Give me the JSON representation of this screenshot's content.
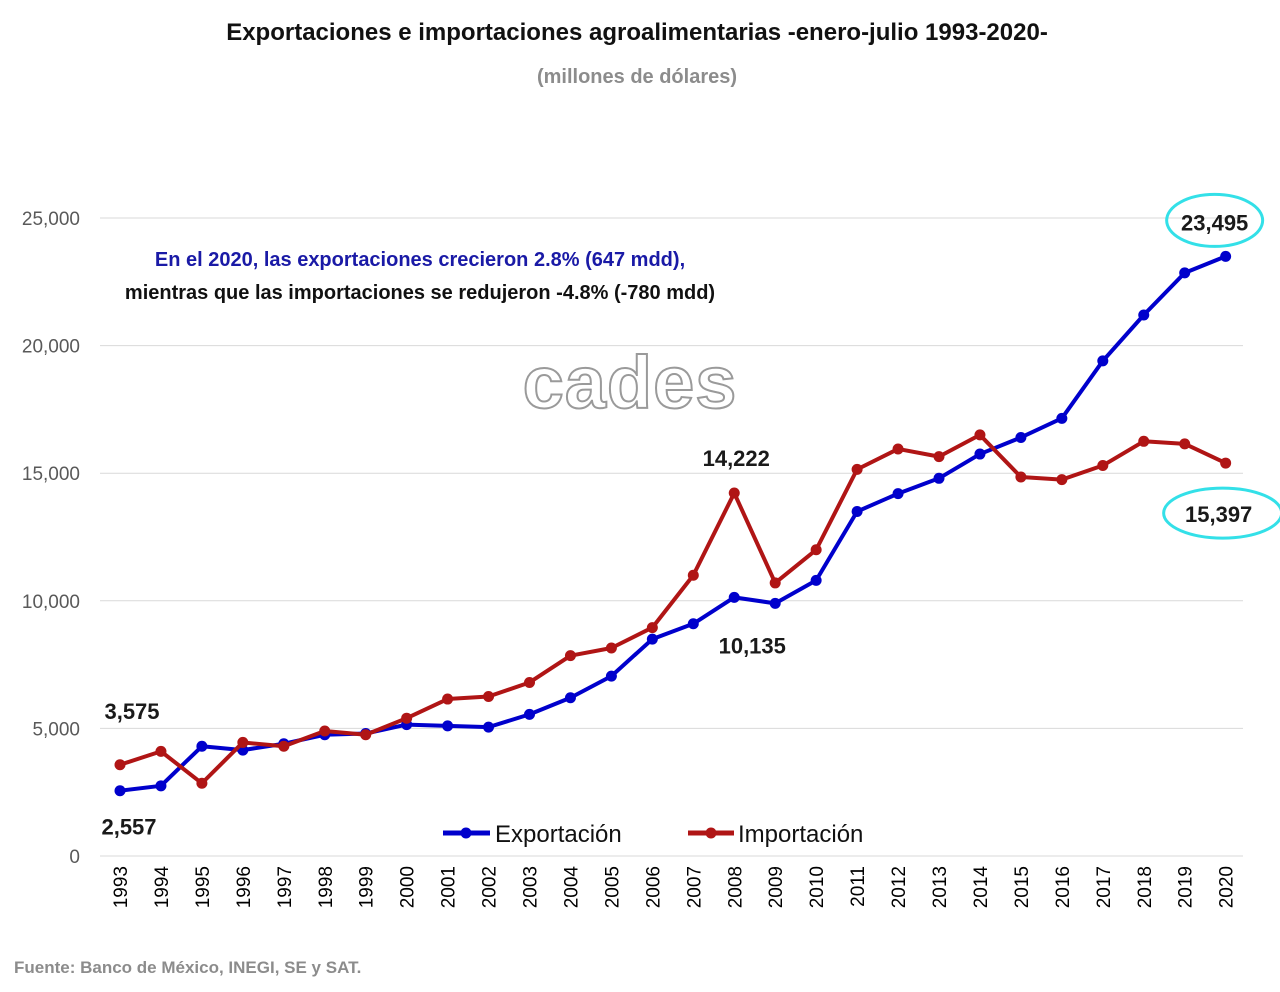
{
  "chart_data": {
    "type": "line",
    "title": "Exportaciones e importaciones agroalimentarias -enero-julio 1993-2020-",
    "subtitle": "(millones de dólares)",
    "categories": [
      "1993",
      "1994",
      "1995",
      "1996",
      "1997",
      "1998",
      "1999",
      "2000",
      "2001",
      "2002",
      "2003",
      "2004",
      "2005",
      "2006",
      "2007",
      "2008",
      "2009",
      "2010",
      "2011",
      "2012",
      "2013",
      "2014",
      "2015",
      "2016",
      "2017",
      "2018",
      "2019",
      "2020"
    ],
    "series": [
      {
        "name": "Exportación",
        "color": "#0000cc",
        "values": [
          2557,
          2750,
          4300,
          4150,
          4400,
          4750,
          4800,
          5150,
          5100,
          5050,
          5550,
          6200,
          7050,
          8500,
          9100,
          10135,
          9900,
          10800,
          13500,
          14200,
          14800,
          15750,
          16400,
          17150,
          19400,
          21200,
          22850,
          23495
        ]
      },
      {
        "name": "Importación",
        "color": "#b01515",
        "values": [
          3575,
          4100,
          2850,
          4450,
          4300,
          4900,
          4750,
          5400,
          6150,
          6250,
          6800,
          7850,
          8150,
          8950,
          11000,
          14222,
          10700,
          12000,
          15150,
          15950,
          15650,
          16500,
          14850,
          14750,
          15300,
          16250,
          16150,
          15397
        ]
      }
    ],
    "ylim": [
      0,
      25000
    ],
    "yticks": [
      0,
      5000,
      10000,
      15000,
      20000,
      25000
    ],
    "ytick_labels": [
      "0",
      "5,000",
      "10,000",
      "15,000",
      "20,000",
      "25,000"
    ],
    "grid": true,
    "legend_position": "bottom",
    "data_labels": [
      {
        "text": "3,575",
        "series": "Importación",
        "category": "1993"
      },
      {
        "text": "2,557",
        "series": "Exportación",
        "category": "1993"
      },
      {
        "text": "14,222",
        "series": "Importación",
        "category": "2008"
      },
      {
        "text": "10,135",
        "series": "Exportación",
        "category": "2008"
      },
      {
        "text": "23,495",
        "series": "Exportación",
        "category": "2020",
        "highlight": true
      },
      {
        "text": "15,397",
        "series": "Importación",
        "category": "2020",
        "highlight": true
      }
    ],
    "highlight_color": "#33e0e8",
    "annotation_line1": "En el 2020, las exportaciones crecieron 2.8% (647 mdd),",
    "annotation_line1_color": "#1a1aa6",
    "annotation_line2": "mientras que las importaciones se redujeron -4.8% (-780 mdd)",
    "source": "Fuente: Banco de México, INEGI, SE y SAT.",
    "watermark": "cades"
  }
}
